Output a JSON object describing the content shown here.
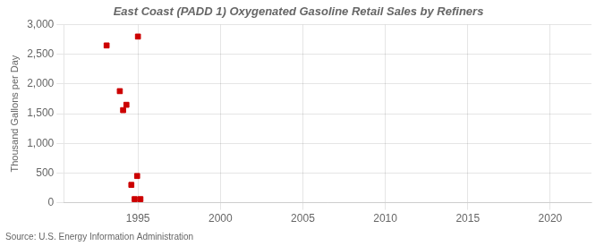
{
  "chart_data": {
    "type": "scatter",
    "title": "East Coast (PADD 1) Oxygenated Gasoline Retail Sales by Refiners",
    "ylabel": "Thousand Gallons per Day",
    "source": "Source: U.S. Energy Information Administration",
    "x": [
      1993.1,
      1993.9,
      1994.1,
      1994.3,
      1994.6,
      1994.8,
      1994.95,
      1995.0,
      1995.15
    ],
    "values": [
      2650,
      1880,
      1560,
      1650,
      300,
      60,
      450,
      2800,
      60
    ],
    "color": "#cc0000",
    "marker": "square",
    "xlim": [
      1990.5,
      2022.5
    ],
    "xticks": [
      1995,
      2000,
      2005,
      2010,
      2015,
      2020
    ],
    "ylim": [
      0,
      3000
    ],
    "yticks": [
      0,
      500,
      {
        "value": 1000,
        "label": "1,000"
      },
      {
        "value": 1500,
        "label": "1,500"
      },
      {
        "value": 2000,
        "label": "2,000"
      },
      {
        "value": 2500,
        "label": "2,500"
      },
      {
        "value": 3000,
        "label": "3,000"
      }
    ],
    "grid": true
  }
}
